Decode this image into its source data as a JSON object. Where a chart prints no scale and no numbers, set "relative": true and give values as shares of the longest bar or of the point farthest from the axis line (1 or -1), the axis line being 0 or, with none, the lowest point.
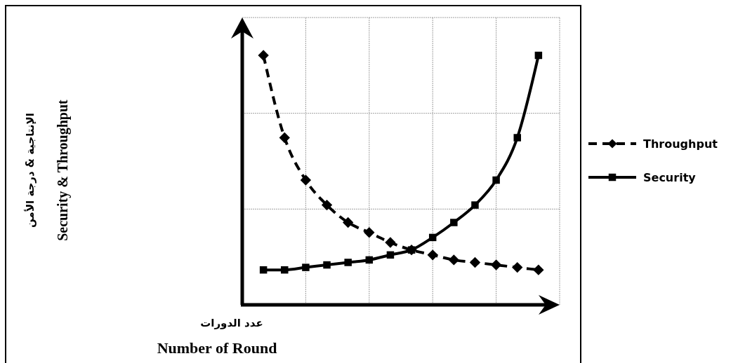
{
  "chart_data": {
    "type": "line",
    "relative": true,
    "xlabel": "عدد الدورات\nNumber of Round",
    "ylabel": "الإنتاجية & درجة الأمن\nSecurity & Throughput",
    "categories": [
      null,
      null,
      null,
      null,
      null,
      null,
      null,
      null,
      null,
      null,
      null,
      null,
      null,
      null
    ],
    "series": [
      {
        "name": "Throughput",
        "color": "#000000",
        "marker": "diamond",
        "line_style": "dashed",
        "values": [
          1,
          0.67,
          0.5,
          0.4,
          0.33,
          0.29,
          0.25,
          0.22,
          0.2,
          0.18,
          0.17,
          0.16,
          0.15,
          0.14
        ]
      },
      {
        "name": "Security",
        "color": "#000000",
        "marker": "square",
        "line_style": "solid",
        "values": [
          0.14,
          0.14,
          0.15,
          0.16,
          0.17,
          0.18,
          0.2,
          0.22,
          0.27,
          0.33,
          0.4,
          0.5,
          0.67,
          1
        ]
      }
    ],
    "grid": true,
    "legend": "right"
  }
}
